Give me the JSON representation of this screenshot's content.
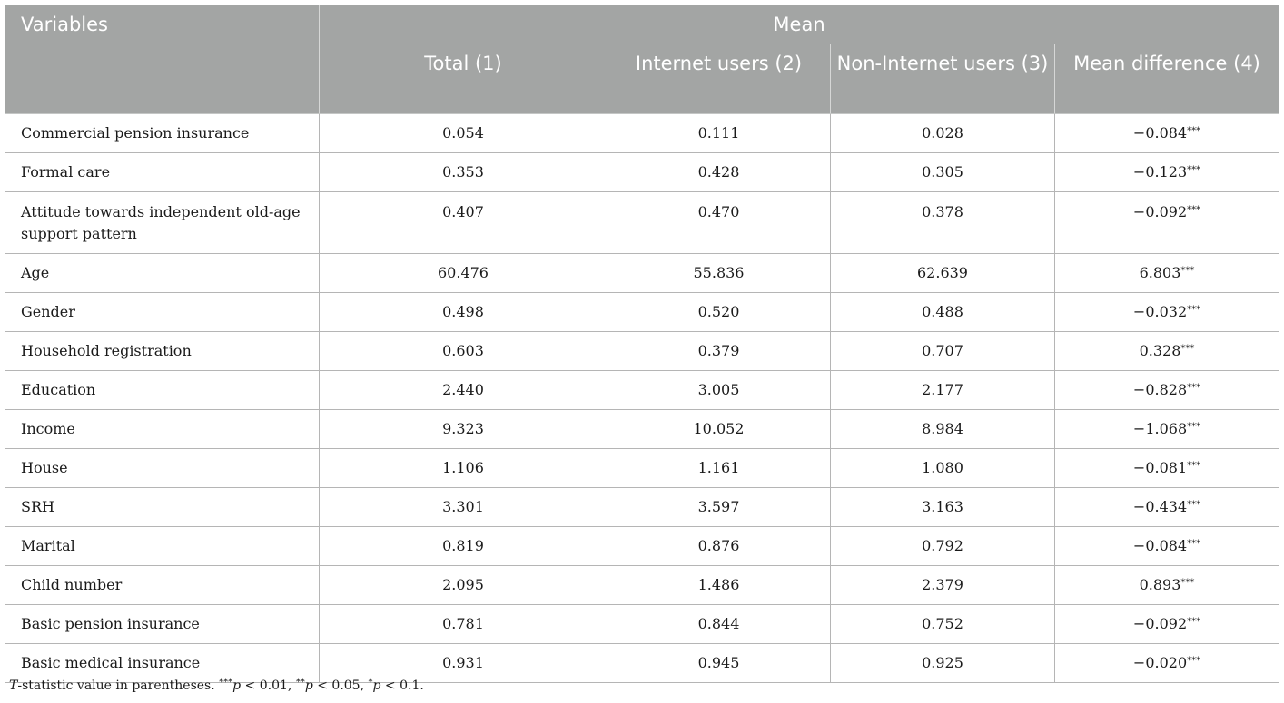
{
  "table": {
    "header": {
      "variables": "Variables",
      "mean": "Mean",
      "columns": [
        "Total (1)",
        "Internet users (2)",
        "Non-Internet users (3)",
        "Mean difference (4)"
      ]
    },
    "rows": [
      {
        "variable": "Commercial pension insurance",
        "total": "0.054",
        "internet": "0.111",
        "non_internet": "0.028",
        "diff": "−0.084",
        "stars": "***"
      },
      {
        "variable": "Formal care",
        "total": "0.353",
        "internet": "0.428",
        "non_internet": "0.305",
        "diff": "−0.123",
        "stars": "***"
      },
      {
        "variable": "Attitude towards independent old-age support pattern",
        "total": "0.407",
        "internet": "0.470",
        "non_internet": "0.378",
        "diff": "−0.092",
        "stars": "***"
      },
      {
        "variable": "Age",
        "total": "60.476",
        "internet": "55.836",
        "non_internet": "62.639",
        "diff": "6.803",
        "stars": "***"
      },
      {
        "variable": "Gender",
        "total": "0.498",
        "internet": "0.520",
        "non_internet": "0.488",
        "diff": "−0.032",
        "stars": "***"
      },
      {
        "variable": "Household registration",
        "total": "0.603",
        "internet": "0.379",
        "non_internet": "0.707",
        "diff": "0.328",
        "stars": "***"
      },
      {
        "variable": "Education",
        "total": "2.440",
        "internet": "3.005",
        "non_internet": "2.177",
        "diff": "−0.828",
        "stars": "***"
      },
      {
        "variable": "Income",
        "total": "9.323",
        "internet": "10.052",
        "non_internet": "8.984",
        "diff": "−1.068",
        "stars": "***"
      },
      {
        "variable": "House",
        "total": "1.106",
        "internet": "1.161",
        "non_internet": "1.080",
        "diff": "−0.081",
        "stars": "***"
      },
      {
        "variable": "SRH",
        "total": "3.301",
        "internet": "3.597",
        "non_internet": "3.163",
        "diff": "−0.434",
        "stars": "***"
      },
      {
        "variable": "Marital",
        "total": "0.819",
        "internet": "0.876",
        "non_internet": "0.792",
        "diff": "−0.084",
        "stars": "***"
      },
      {
        "variable": "Child number",
        "total": "2.095",
        "internet": "1.486",
        "non_internet": "2.379",
        "diff": "0.893",
        "stars": "***"
      },
      {
        "variable": "Basic pension insurance",
        "total": "0.781",
        "internet": "0.844",
        "non_internet": "0.752",
        "diff": "−0.092",
        "stars": "***"
      },
      {
        "variable": "Basic medical insurance",
        "total": "0.931",
        "internet": "0.945",
        "non_internet": "0.925",
        "diff": "−0.020",
        "stars": "***"
      }
    ]
  },
  "footnote": {
    "t_letter": "T",
    "t_rest": "-statistic value in parentheses. ",
    "s1": "***",
    "t1": "p",
    "v1": " < 0.01, ",
    "s2": "**",
    "t2": "p",
    "v2": " < 0.05, ",
    "s3": "*",
    "t3": "p",
    "v3": " < 0.1."
  },
  "colors": {
    "header_bg": "#a3a5a4",
    "header_text": "#ffffff",
    "grid": "#b5b5b5"
  }
}
